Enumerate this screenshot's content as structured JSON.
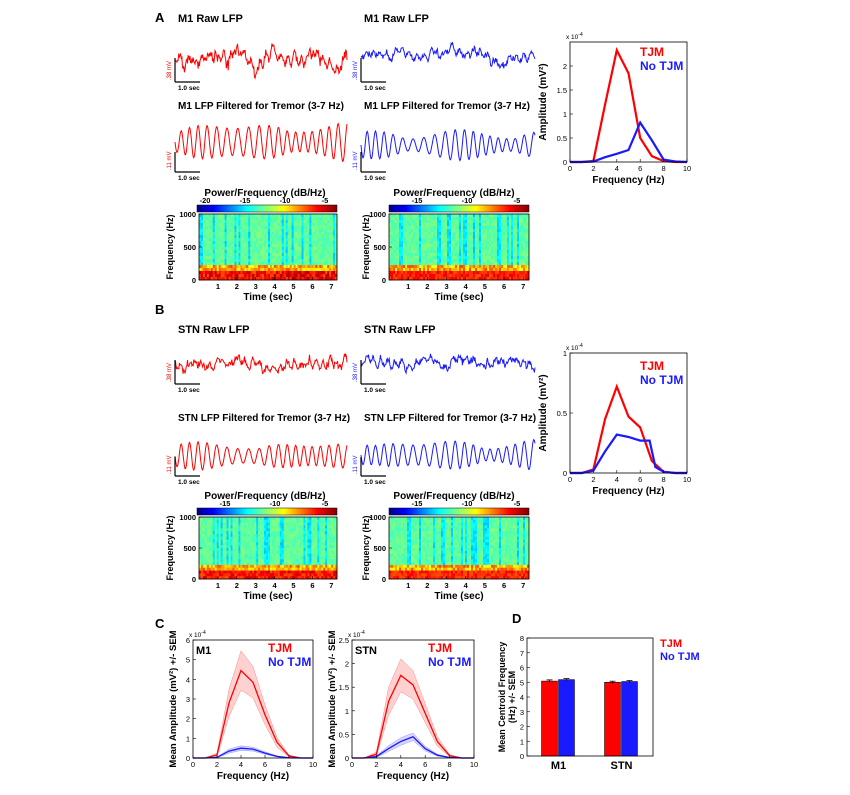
{
  "figure": {
    "panel_labels": {
      "a": "A",
      "b": "B",
      "c": "C",
      "d": "D"
    }
  },
  "panel_a": {
    "raw_title_left": "M1 Raw LFP",
    "raw_title_right": "M1 Raw LFP",
    "filt_title_left": "M1 LFP Filtered for Tremor (3-7 Hz)",
    "filt_title_right": "M1 LFP Filtered for Tremor (3-7 Hz)",
    "raw_scale_left": ".38 mV",
    "raw_scale_right": ".38 mV",
    "filt_scale_left": ".11 mV",
    "filt_scale_right": ".11 mV",
    "time_scale": "1.0 sec",
    "spectro_cbar_title": "Power/Frequency (dB/Hz)",
    "spectro_cbar_ticks_left": [
      "-20",
      "-15",
      "-10",
      "-5"
    ],
    "spectro_cbar_ticks_right": [
      "-15",
      "-10",
      "-5"
    ],
    "colors": {
      "tjm": "#ff0000",
      "no_tjm": "#1a1aff"
    }
  },
  "panel_b": {
    "raw_title_left": "STN Raw LFP",
    "raw_title_right": "STN Raw LFP",
    "filt_title_left": "STN LFP Filtered for Tremor (3-7 Hz)",
    "filt_title_right": "STN LFP Filtered for Tremor (3-7 Hz)",
    "raw_scale_left": ".38 mV",
    "raw_scale_right": ".38 mV",
    "filt_scale_left": ".11 mV",
    "filt_scale_right": ".11 mV",
    "time_scale": "1.0 sec",
    "spectro_cbar_title": "Power/Frequency (dB/Hz)",
    "spectro_cbar_ticks_left": [
      "-15",
      "-10",
      "-5"
    ],
    "spectro_cbar_ticks_right": [
      "-15",
      "-10",
      "-5"
    ]
  },
  "spectrogram_axes": {
    "ylabel": "Frequency (Hz)",
    "xlabel": "Time (sec)",
    "yticks": [
      "0",
      "500",
      "1000"
    ],
    "xticks": [
      "1",
      "2",
      "3",
      "4",
      "5",
      "6",
      "7"
    ]
  },
  "chart_data": [
    {
      "id": "a_amplitude",
      "type": "line",
      "xlabel": "Frequency (Hz)",
      "ylabel": "Amplitude (mV²)",
      "exponent": "x 10",
      "exponent_power": "-4",
      "xlim": [
        0,
        10
      ],
      "ylim": [
        0,
        2.5
      ],
      "xticks": [
        0,
        2,
        4,
        6,
        8,
        10
      ],
      "yticks": [
        0,
        0.5,
        1,
        1.5,
        2
      ],
      "ytick_labels": [
        "0",
        "0.5",
        "1",
        "1.5",
        "2"
      ],
      "legend": [
        "TJM",
        "No TJM"
      ],
      "series": [
        {
          "name": "TJM",
          "color": "#ff0000",
          "x": [
            0,
            1,
            2,
            3,
            4,
            5,
            6,
            7,
            8,
            9,
            10
          ],
          "y": [
            0,
            0,
            0.02,
            1.2,
            2.33,
            1.85,
            0.5,
            0.12,
            0.02,
            0,
            0
          ]
        },
        {
          "name": "No TJM",
          "color": "#1a1aff",
          "x": [
            0,
            1,
            2,
            3,
            4,
            5,
            6,
            7,
            8,
            9,
            10
          ],
          "y": [
            0,
            0,
            0.01,
            0.1,
            0.17,
            0.25,
            0.82,
            0.45,
            0.05,
            0.01,
            0
          ]
        }
      ]
    },
    {
      "id": "b_amplitude",
      "type": "line",
      "xlabel": "Frequency (Hz)",
      "ylabel": "Amplitude (mV²)",
      "exponent": "x 10",
      "exponent_power": "-4",
      "xlim": [
        0,
        10
      ],
      "ylim": [
        0,
        1
      ],
      "xticks": [
        0,
        2,
        4,
        6,
        8,
        10
      ],
      "yticks": [
        0,
        0.5,
        1
      ],
      "ytick_labels": [
        "0",
        "0.5",
        "1"
      ],
      "legend": [
        "TJM",
        "No TJM"
      ],
      "series": [
        {
          "name": "TJM",
          "color": "#ff0000",
          "x": [
            0,
            1,
            2,
            3,
            4,
            5,
            6,
            7,
            8,
            9,
            10
          ],
          "y": [
            0,
            0,
            0.03,
            0.45,
            0.72,
            0.47,
            0.38,
            0.1,
            0.01,
            0,
            0
          ]
        },
        {
          "name": "No TJM",
          "color": "#1a1aff",
          "x": [
            0,
            1,
            2,
            3,
            4,
            5,
            6,
            6.8,
            7.3,
            8,
            9,
            10
          ],
          "y": [
            0,
            0,
            0.02,
            0.18,
            0.32,
            0.3,
            0.27,
            0.27,
            0.05,
            0.01,
            0,
            0
          ]
        }
      ]
    },
    {
      "id": "c_m1",
      "type": "line",
      "panel_text": "M1",
      "xlabel": "Frequency (Hz)",
      "ylabel": "Mean Amplitude (mV²) +/- SEM",
      "exponent": "x 10",
      "exponent_power": "-4",
      "xlim": [
        0,
        10
      ],
      "ylim": [
        0,
        6
      ],
      "xticks": [
        0,
        2,
        4,
        6,
        8,
        10
      ],
      "yticks": [
        0,
        1,
        2,
        3,
        4,
        5,
        6
      ],
      "legend": [
        "TJM",
        "No TJM"
      ],
      "series": [
        {
          "name": "TJM",
          "color": "#ff0000",
          "x": [
            0,
            1,
            2,
            3,
            4,
            5,
            6,
            7,
            8,
            9,
            10
          ],
          "y": [
            0,
            0,
            0.15,
            2.8,
            4.45,
            3.85,
            2.2,
            0.8,
            0.1,
            0,
            0
          ],
          "sem": [
            0,
            0,
            0.1,
            0.7,
            1.0,
            0.8,
            0.5,
            0.25,
            0.05,
            0,
            0
          ]
        },
        {
          "name": "No TJM",
          "color": "#1a1aff",
          "x": [
            0,
            1,
            2,
            3,
            4,
            5,
            6,
            7,
            8,
            9,
            10
          ],
          "y": [
            0,
            0,
            0.03,
            0.35,
            0.5,
            0.45,
            0.25,
            0.08,
            0.01,
            0,
            0
          ],
          "sem": [
            0,
            0,
            0.02,
            0.1,
            0.12,
            0.1,
            0.06,
            0.03,
            0,
            0,
            0
          ]
        }
      ]
    },
    {
      "id": "c_stn",
      "type": "line",
      "panel_text": "STN",
      "xlabel": "Frequency (Hz)",
      "ylabel": "Mean Amplitude (mV²) +/- SEM",
      "exponent": "x 10",
      "exponent_power": "-4",
      "xlim": [
        0,
        10
      ],
      "ylim": [
        0,
        2.5
      ],
      "xticks": [
        0,
        2,
        4,
        6,
        8,
        10
      ],
      "yticks": [
        0,
        0.5,
        1,
        1.5,
        2,
        2.5
      ],
      "ytick_labels": [
        "0",
        "0.5",
        "1",
        "1.5",
        "2",
        "2.5"
      ],
      "legend": [
        "TJM",
        "No TJM"
      ],
      "series": [
        {
          "name": "TJM",
          "color": "#ff0000",
          "x": [
            0,
            1,
            2,
            3,
            4,
            5,
            6,
            7,
            8,
            9,
            10
          ],
          "y": [
            0,
            0,
            0.08,
            1.2,
            1.75,
            1.55,
            0.95,
            0.35,
            0.05,
            0,
            0
          ],
          "sem": [
            0,
            0,
            0.05,
            0.3,
            0.35,
            0.3,
            0.2,
            0.1,
            0.02,
            0,
            0
          ]
        },
        {
          "name": "No TJM",
          "color": "#1a1aff",
          "x": [
            0,
            1,
            2,
            3,
            4,
            5,
            6,
            7,
            8,
            9,
            10
          ],
          "y": [
            0,
            0,
            0.03,
            0.2,
            0.35,
            0.45,
            0.2,
            0.06,
            0.01,
            0,
            0
          ],
          "sem": [
            0,
            0,
            0.02,
            0.06,
            0.08,
            0.08,
            0.05,
            0.02,
            0,
            0,
            0
          ]
        }
      ]
    },
    {
      "id": "d_centroid",
      "type": "bar",
      "ylabel_line1": "Mean Centroid Frequency",
      "ylabel_line2": "(Hz) +/- SEM",
      "ylim": [
        0,
        8
      ],
      "yticks": [
        0,
        1,
        2,
        3,
        4,
        5,
        6,
        7,
        8
      ],
      "categories": [
        "M1",
        "STN"
      ],
      "legend": [
        "TJM",
        "No TJM"
      ],
      "series": [
        {
          "name": "TJM",
          "color": "#ff0000",
          "values": [
            5.08,
            5.0
          ],
          "sem": [
            0.08,
            0.07
          ]
        },
        {
          "name": "No TJM",
          "color": "#1a1aff",
          "values": [
            5.18,
            5.05
          ],
          "sem": [
            0.07,
            0.06
          ]
        }
      ]
    }
  ]
}
